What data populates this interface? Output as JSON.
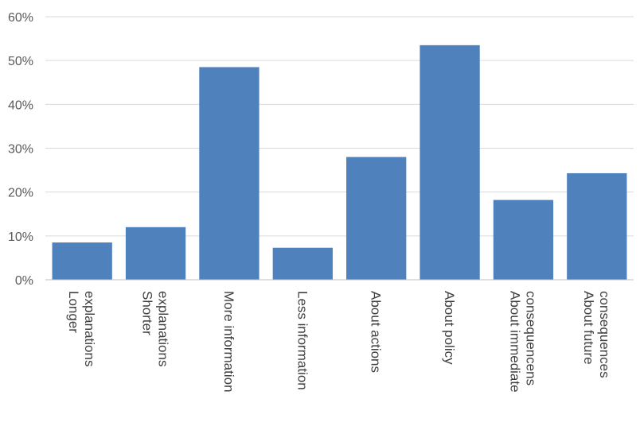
{
  "chart_data": {
    "type": "bar",
    "categories": [
      [
        "Longer",
        "explanations"
      ],
      [
        "Shorter",
        "explanations"
      ],
      [
        "More information"
      ],
      [
        "Less information"
      ],
      [
        "About actions"
      ],
      [
        "About policy"
      ],
      [
        "About immediate",
        "consequencens"
      ],
      [
        "About future",
        "consequences"
      ]
    ],
    "values": [
      8.5,
      12,
      48.5,
      7.3,
      28,
      53.5,
      18.2,
      24.3
    ],
    "ylim": [
      0,
      60
    ],
    "yticks": [
      "0%",
      "10%",
      "20%",
      "30%",
      "40%",
      "50%",
      "60%"
    ],
    "grid": true,
    "bar_color": "#4f81bd"
  }
}
